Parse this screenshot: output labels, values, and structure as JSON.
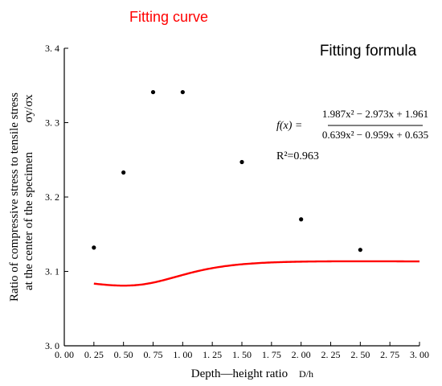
{
  "chart_data": {
    "type": "scatter",
    "title": "Fitting curve",
    "xlabel": "Depth—height ratio",
    "xlabel_unit": "D/h",
    "ylabel_line1": "Ratio of compressive stress to tensile stress",
    "ylabel_line2": "at the center of the specimen",
    "ylabel_symbol": "σy/σx",
    "xlim": [
      0.0,
      3.0
    ],
    "ylim": [
      3.0,
      3.4
    ],
    "x_ticks": [
      0.0,
      0.25,
      0.5,
      0.75,
      1.0,
      1.25,
      1.5,
      1.75,
      2.0,
      2.25,
      2.5,
      2.75,
      3.0
    ],
    "x_tick_labels": [
      "0. 00",
      "0. 25",
      "0. 50",
      "0. 75",
      "1. 00",
      "1. 25",
      "1. 50",
      "1. 75",
      "2. 00",
      "2. 25",
      "2. 50",
      "2. 75",
      "3. 00"
    ],
    "y_ticks": [
      3.0,
      3.1,
      3.2,
      3.3,
      3.4
    ],
    "y_tick_labels": [
      "3. 0",
      "3. 1",
      "3. 2",
      "3. 3",
      "3. 4"
    ],
    "grid": false,
    "points": {
      "x": [
        0.25,
        0.5,
        0.75,
        1.0,
        1.5,
        2.0,
        2.5
      ],
      "y": [
        3.132,
        3.233,
        3.341,
        3.341,
        3.247,
        3.17,
        3.129
      ],
      "color": "#000000"
    },
    "fit": {
      "color": "#ff0000",
      "x_range": [
        0.25,
        3.0
      ],
      "num": [
        1.987,
        -2.973,
        1.961
      ],
      "den": [
        0.639,
        -0.959,
        0.635
      ]
    },
    "formula_heading": "Fitting formula",
    "formula_lhs": "f(x) =",
    "formula_numerator": "1.987x² − 2.973x + 1.961",
    "formula_denominator": "0.639x² − 0.959x + 0.635",
    "r2_label": "R²=0.963",
    "colors": {
      "title": "#ff0000",
      "axis": "#000000"
    }
  }
}
